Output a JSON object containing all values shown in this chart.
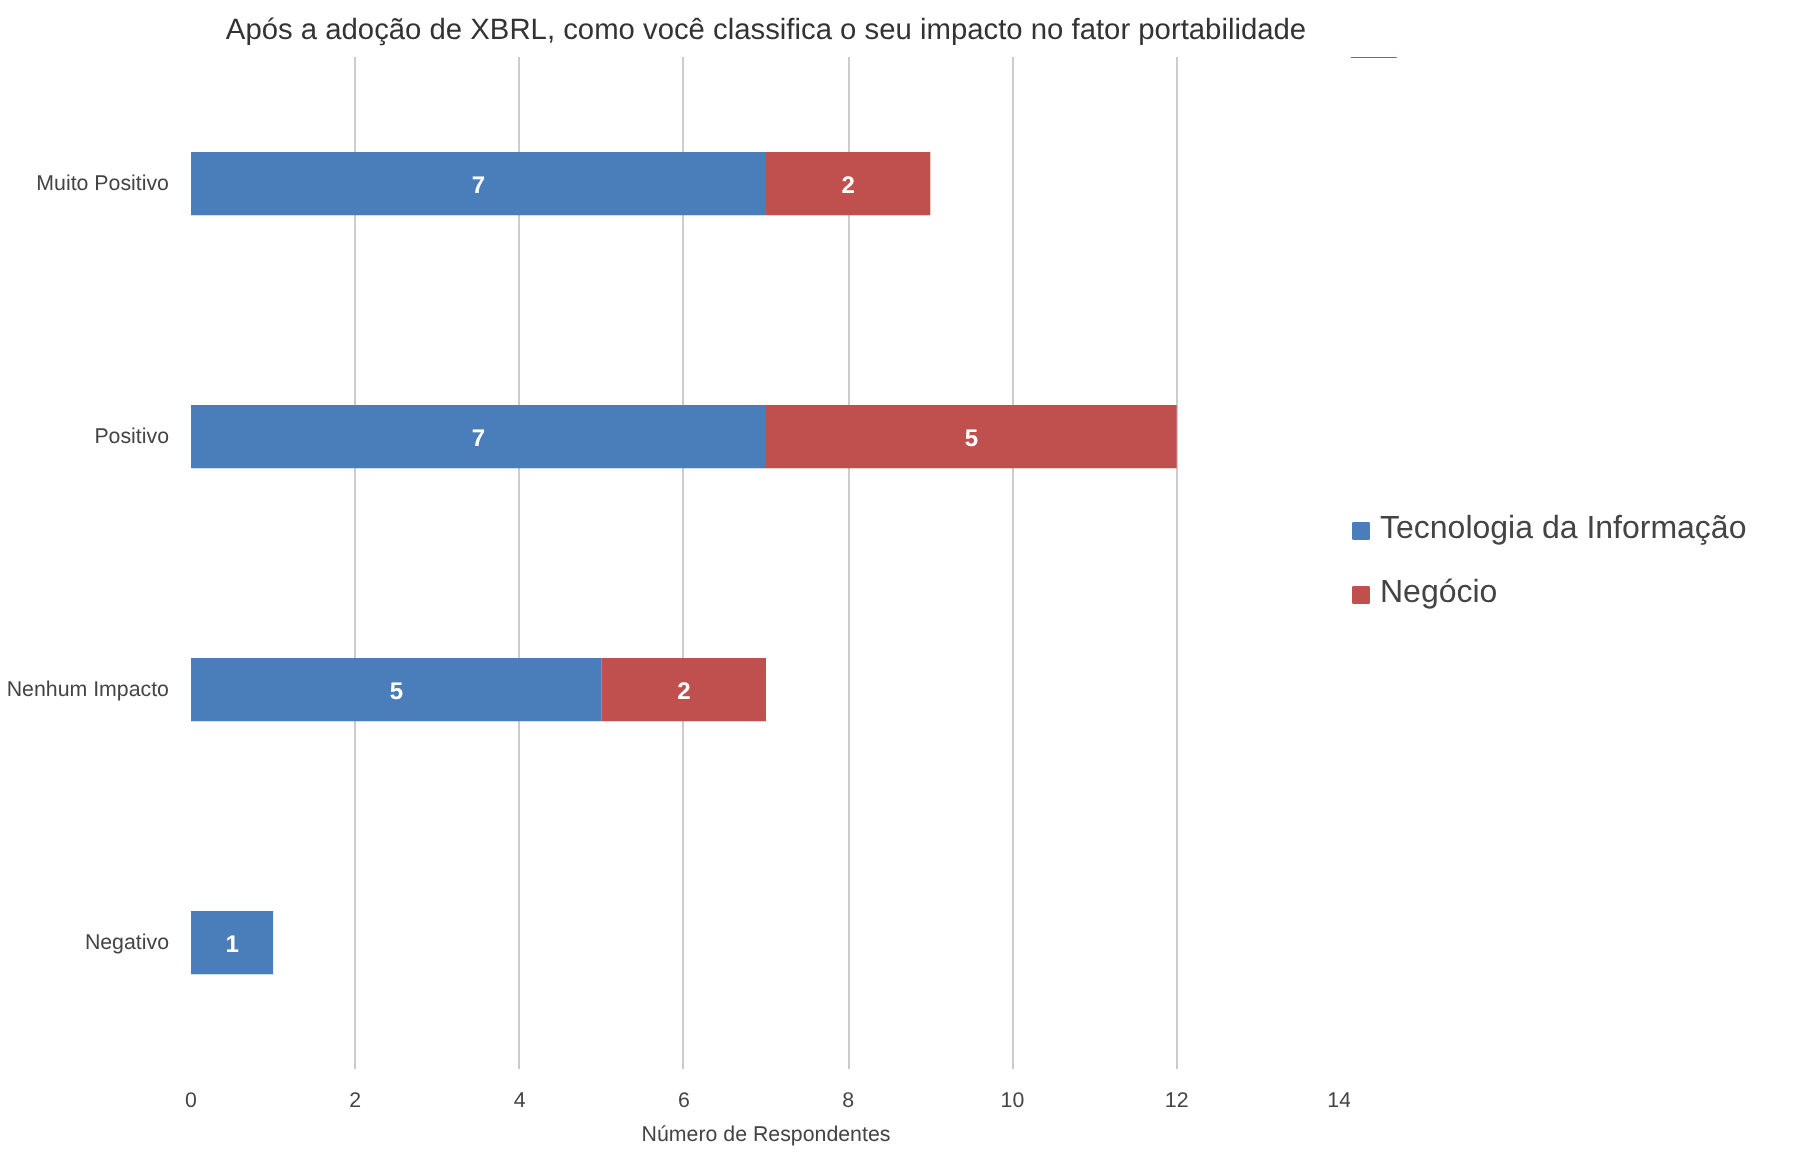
{
  "chart_data": {
    "type": "bar",
    "orientation": "horizontal",
    "stacked": true,
    "title": "Após a adoção de XBRL, como você classifica o seu impacto no fator portabilidade",
    "xlabel": "Número de Respondentes",
    "categories": [
      "Muito Positivo",
      "Positivo",
      "Nenhum Impacto",
      "Negativo"
    ],
    "series": [
      {
        "name": "Tecnologia da Informação",
        "color": "#4a7ebb",
        "values": [
          7,
          7,
          5,
          1
        ]
      },
      {
        "name": "Negócio",
        "color": "#c0504d",
        "values": [
          2,
          5,
          2,
          null
        ]
      }
    ],
    "xlim": [
      0,
      14
    ],
    "xticks": [
      0,
      2,
      4,
      6,
      8,
      10,
      12,
      14
    ],
    "grid": "x",
    "legend": "right",
    "data_labels": true
  }
}
